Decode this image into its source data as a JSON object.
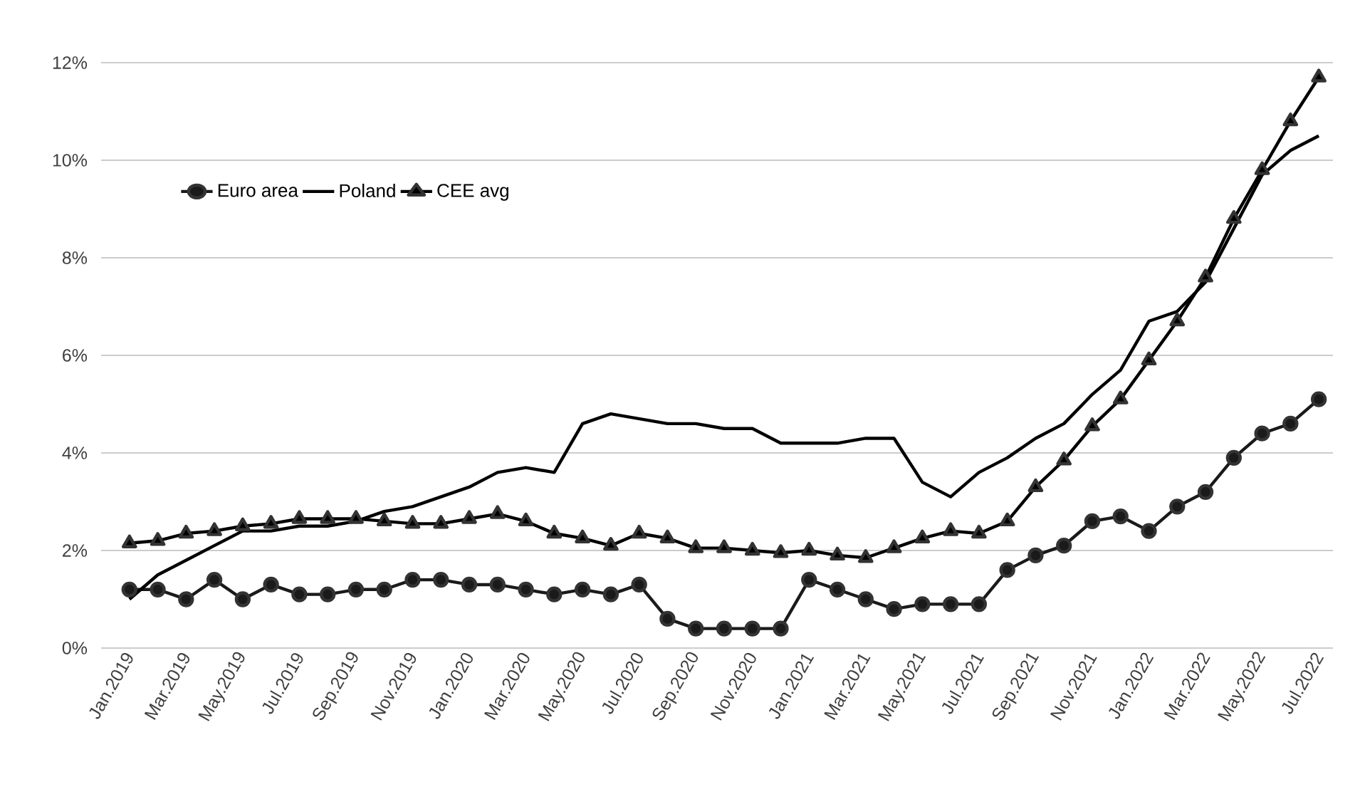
{
  "chart_data": {
    "type": "line",
    "categories": [
      "Jan.2019",
      null,
      "Mar.2019",
      null,
      "May.2019",
      null,
      "Jul.2019",
      null,
      "Sep.2019",
      null,
      "Nov.2019",
      null,
      "Jan.2020",
      null,
      "Mar.2020",
      null,
      "May.2020",
      null,
      "Jul.2020",
      null,
      "Sep.2020",
      null,
      "Nov.2020",
      null,
      "Jan.2021",
      null,
      "Mar.2021",
      null,
      "May.2021",
      null,
      "Jul.2021",
      null,
      "Sep.2021",
      null,
      "Nov.2021",
      null,
      "Jan.2022",
      null,
      "Mar.2022",
      null,
      "May.2022",
      null,
      "Jul.2022"
    ],
    "series": [
      {
        "name": "Euro area",
        "color": "#1a1a1a",
        "marker": "circle",
        "values": [
          1.2,
          1.2,
          1.0,
          1.4,
          1.0,
          1.3,
          1.1,
          1.1,
          1.2,
          1.2,
          1.4,
          1.4,
          1.3,
          1.3,
          1.2,
          1.1,
          1.2,
          1.1,
          1.3,
          0.6,
          0.4,
          0.4,
          0.4,
          0.4,
          1.4,
          1.2,
          1.0,
          0.8,
          0.9,
          0.9,
          0.9,
          1.6,
          1.9,
          2.1,
          2.6,
          2.7,
          2.4,
          2.9,
          3.2,
          3.9,
          4.4,
          4.6,
          5.1
        ]
      },
      {
        "name": "Poland",
        "color": "#000000",
        "marker": "none",
        "values": [
          1.0,
          1.5,
          1.8,
          2.1,
          2.4,
          2.4,
          2.5,
          2.5,
          2.6,
          2.8,
          2.9,
          3.1,
          3.3,
          3.6,
          3.7,
          3.6,
          4.6,
          4.8,
          4.7,
          4.6,
          4.6,
          4.5,
          4.5,
          4.2,
          4.2,
          4.2,
          4.3,
          4.3,
          3.4,
          3.1,
          3.6,
          3.9,
          4.3,
          4.6,
          5.2,
          5.7,
          6.7,
          6.9,
          7.5,
          8.6,
          9.7,
          10.2,
          10.5
        ]
      },
      {
        "name": "CEE avg",
        "color": "#000000",
        "marker": "triangle",
        "values": [
          2.15,
          2.2,
          2.35,
          2.4,
          2.5,
          2.55,
          2.65,
          2.65,
          2.65,
          2.6,
          2.55,
          2.55,
          2.65,
          2.75,
          2.6,
          2.35,
          2.25,
          2.1,
          2.35,
          2.25,
          2.05,
          2.05,
          2.0,
          1.95,
          2.0,
          1.9,
          1.85,
          2.05,
          2.25,
          2.4,
          2.35,
          2.6,
          3.3,
          3.85,
          4.55,
          5.1,
          5.9,
          6.7,
          7.6,
          8.8,
          9.8,
          10.8,
          11.7
        ]
      }
    ],
    "ylim": [
      0,
      12
    ],
    "yticks": [
      {
        "value": 0,
        "label": "0%"
      },
      {
        "value": 2,
        "label": "2%"
      },
      {
        "value": 4,
        "label": "4%"
      },
      {
        "value": 6,
        "label": "6%"
      },
      {
        "value": 8,
        "label": "8%"
      },
      {
        "value": 10,
        "label": "10%"
      },
      {
        "value": 12,
        "label": "12%"
      }
    ],
    "grid": "y",
    "legend": "top left"
  }
}
